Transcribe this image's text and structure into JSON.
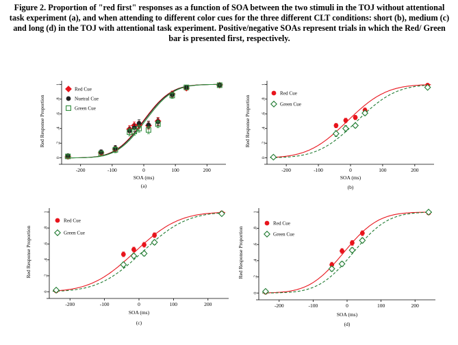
{
  "caption": "Figure 2. Proportion of \"red first\" responses as a function of SOA between the two stimuli in the TOJ without attentional task experiment (a), and when attending to different color cues for the three different CLT conditions: short (b), medium (c) and long (d) in the TOJ with attentional task experiment. Positive/negative SOAs represent trials in which the Red/ Green bar is presented first, respectively.",
  "chart_data": [
    {
      "panel_label": "(a)",
      "type": "scatter",
      "xlabel": "SOA (ms)",
      "ylabel": "Red Response Proportion",
      "xticks": [
        -200,
        -100,
        0,
        100,
        200
      ],
      "yticks": [
        0,
        0.2,
        0.4,
        0.6,
        0.8,
        1
      ],
      "ytick_labels": [
        "0",
        ".2",
        ".4",
        ".6",
        ".8",
        "1"
      ],
      "xlim": [
        -260,
        260
      ],
      "ylim": [
        -0.05,
        1.05
      ],
      "legend_position": "top-left",
      "series": [
        {
          "name": "Red Cue",
          "marker": "diamond-filled",
          "color": "#e8141c",
          "x": [
            -240,
            -135,
            -90,
            -45,
            -30,
            -15,
            15,
            45,
            90,
            135,
            240
          ],
          "y": [
            0.02,
            0.07,
            0.12,
            0.39,
            0.44,
            0.45,
            0.44,
            0.5,
            0.87,
            0.95,
            0.99
          ],
          "err": [
            0.02,
            0.03,
            0.04,
            0.05,
            0.05,
            0.05,
            0.05,
            0.05,
            0.04,
            0.03,
            0.01
          ],
          "fit": {
            "mu": -2,
            "sigma": 70
          }
        },
        {
          "name": "Nuetral Cue",
          "marker": "circle-filled",
          "color": "#222222",
          "x": [
            -240,
            -135,
            -90,
            -45,
            -30,
            -15,
            15,
            45,
            90,
            135,
            240
          ],
          "y": [
            0.03,
            0.08,
            0.13,
            0.37,
            0.41,
            0.47,
            0.45,
            0.49,
            0.86,
            0.96,
            0.99
          ],
          "err": [
            0.02,
            0.03,
            0.04,
            0.05,
            0.05,
            0.05,
            0.05,
            0.05,
            0.04,
            0.03,
            0.01
          ],
          "fit": {
            "mu": 0,
            "sigma": 70
          }
        },
        {
          "name": "Green Cue",
          "marker": "square-open",
          "color": "#2e8b3a",
          "x": [
            -240,
            -135,
            -90,
            -45,
            -30,
            -15,
            15,
            45,
            90,
            135,
            240
          ],
          "y": [
            0.02,
            0.06,
            0.11,
            0.35,
            0.36,
            0.4,
            0.38,
            0.46,
            0.85,
            0.96,
            0.99
          ],
          "err": [
            0.02,
            0.03,
            0.04,
            0.05,
            0.05,
            0.05,
            0.05,
            0.05,
            0.04,
            0.03,
            0.01
          ],
          "fit": {
            "mu": 4,
            "sigma": 70
          }
        }
      ]
    },
    {
      "panel_label": "(b)",
      "type": "scatter",
      "xlabel": "SOA (ms)",
      "ylabel": "Red Response Proportion",
      "xticks": [
        -200,
        -100,
        0,
        100,
        200
      ],
      "yticks": [
        0,
        0.2,
        0.4,
        0.6,
        0.8,
        1
      ],
      "ytick_labels": [
        "0",
        ".2",
        ".4",
        ".6",
        ".8",
        "1"
      ],
      "xlim": [
        -260,
        260
      ],
      "ylim": [
        -0.05,
        1.05
      ],
      "legend_position": "top-left",
      "series": [
        {
          "name": "Red Cue",
          "marker": "circle-filled",
          "color": "#e8141c",
          "x": [
            -240,
            -45,
            -15,
            15,
            45,
            240
          ],
          "y": [
            0.01,
            0.44,
            0.51,
            0.55,
            0.65,
            0.99
          ],
          "err": [
            0.01,
            0.03,
            0.03,
            0.03,
            0.03,
            0.01
          ],
          "fit": {
            "mu": -10,
            "sigma": 95
          }
        },
        {
          "name": "Green Cue",
          "marker": "diamond-open",
          "color": "#1f7a30",
          "x": [
            -240,
            -45,
            -15,
            15,
            45,
            240
          ],
          "y": [
            0.01,
            0.33,
            0.4,
            0.44,
            0.61,
            0.96
          ],
          "err": [
            0.01,
            0.04,
            0.04,
            0.03,
            0.03,
            0.01
          ],
          "fit": {
            "mu": 20,
            "sigma": 95
          }
        }
      ]
    },
    {
      "panel_label": "(c)",
      "type": "scatter",
      "xlabel": "SOA (ms)",
      "ylabel": "Red Response Proportion",
      "xticks": [
        -200,
        -100,
        0,
        100,
        200
      ],
      "yticks": [
        0,
        0.2,
        0.4,
        0.6,
        0.8,
        1
      ],
      "ytick_labels": [
        "0",
        ".2",
        ".4",
        ".6",
        ".8",
        "1"
      ],
      "xlim": [
        -260,
        260
      ],
      "ylim": [
        -0.05,
        1.05
      ],
      "legend_position": "top-left",
      "series": [
        {
          "name": "Red Cue",
          "marker": "circle-filled",
          "color": "#e8141c",
          "x": [
            -240,
            -45,
            -15,
            15,
            45,
            240
          ],
          "y": [
            0.01,
            0.47,
            0.53,
            0.59,
            0.71,
            0.99
          ],
          "err": [
            0.01,
            0.03,
            0.03,
            0.03,
            0.03,
            0.01
          ],
          "fit": {
            "mu": -12,
            "sigma": 100
          }
        },
        {
          "name": "Green Cue",
          "marker": "diamond-open",
          "color": "#1f7a30",
          "x": [
            -240,
            -45,
            -15,
            15,
            45,
            240
          ],
          "y": [
            0.02,
            0.34,
            0.45,
            0.48,
            0.62,
            0.98
          ],
          "err": [
            0.01,
            0.03,
            0.03,
            0.03,
            0.03,
            0.01
          ],
          "fit": {
            "mu": 10,
            "sigma": 100
          }
        }
      ]
    },
    {
      "panel_label": "(d)",
      "type": "scatter",
      "xlabel": "SOA (ms)",
      "ylabel": "Red Response Proportion",
      "xticks": [
        -200,
        -100,
        0,
        100,
        200
      ],
      "yticks": [
        0,
        0.2,
        0.4,
        0.6,
        0.8,
        1
      ],
      "ytick_labels": [
        "0",
        ".2",
        ".4",
        ".6",
        ".8",
        "1"
      ],
      "xlim": [
        -260,
        260
      ],
      "ylim": [
        -0.05,
        1.05
      ],
      "legend_position": "top-left",
      "series": [
        {
          "name": "Red Cue",
          "marker": "circle-filled",
          "color": "#e8141c",
          "x": [
            -240,
            -45,
            -15,
            15,
            45,
            240
          ],
          "y": [
            0.01,
            0.35,
            0.52,
            0.62,
            0.74,
            0.99
          ],
          "err": [
            0.01,
            0.03,
            0.03,
            0.03,
            0.03,
            0.01
          ],
          "fit": {
            "mu": -10,
            "sigma": 80
          }
        },
        {
          "name": "Green Cue",
          "marker": "diamond-open",
          "color": "#1f7a30",
          "x": [
            -240,
            -45,
            -15,
            15,
            45,
            240
          ],
          "y": [
            0.02,
            0.3,
            0.36,
            0.53,
            0.65,
            1.0
          ],
          "err": [
            0.01,
            0.03,
            0.03,
            0.03,
            0.03,
            0.01
          ],
          "fit": {
            "mu": 18,
            "sigma": 80
          }
        }
      ]
    }
  ]
}
